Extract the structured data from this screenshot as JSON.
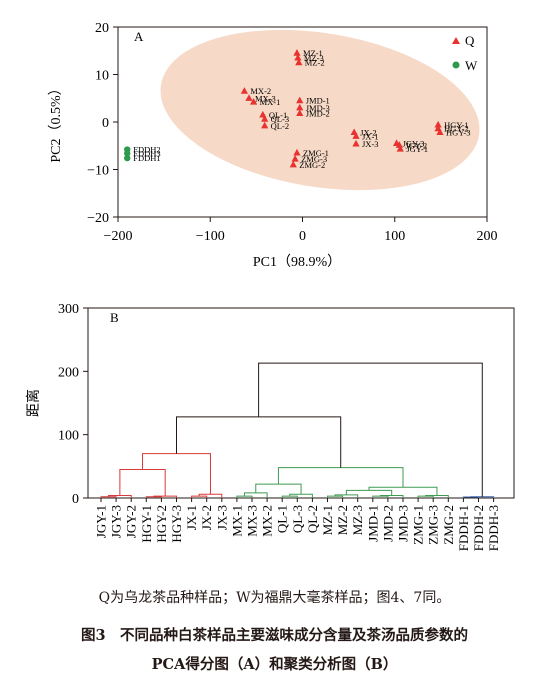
{
  "chart_data": [
    {
      "type": "scatter",
      "panel_label": "A",
      "xlabel": "PC1（98.9%）",
      "ylabel": "PC2（0.5%）",
      "xlim": [
        -200,
        200
      ],
      "ylim": [
        -20,
        20
      ],
      "x_ticks": [
        -200,
        -100,
        0,
        100,
        200
      ],
      "x_tick_labels": [
        "−200",
        "−100",
        "0",
        "100",
        "200"
      ],
      "y_ticks": [
        -20,
        -10,
        0,
        10,
        20
      ],
      "y_tick_labels": [
        "−20",
        "−10",
        "0",
        "10",
        "20"
      ],
      "legend_position": "top-right",
      "colors": {
        "Q": "#e8322f",
        "W": "#2e9a4e",
        "ellipse": "#f6d9c6"
      },
      "series": [
        {
          "name": "Q",
          "marker": "triangle",
          "points": [
            {
              "label": "MZ-1",
              "x": -6,
              "y": 14.5
            },
            {
              "label": "MZ-3",
              "x": -5,
              "y": 13.5
            },
            {
              "label": "MZ-2",
              "x": -4,
              "y": 12.5
            },
            {
              "label": "MX-2",
              "x": -63,
              "y": 6.5
            },
            {
              "label": "MX-3",
              "x": -58,
              "y": 5
            },
            {
              "label": "MX-1",
              "x": -53,
              "y": 4.2
            },
            {
              "label": "JMD-1",
              "x": -3,
              "y": 4.5
            },
            {
              "label": "JMD-3",
              "x": -3,
              "y": 3
            },
            {
              "label": "JMD-2",
              "x": -3,
              "y": 1.8
            },
            {
              "label": "QL-1",
              "x": -43,
              "y": 1.5
            },
            {
              "label": "QL-3",
              "x": -41,
              "y": 0.6
            },
            {
              "label": "QL-2",
              "x": -41,
              "y": -0.8
            },
            {
              "label": "JX-2",
              "x": 56,
              "y": -2.2
            },
            {
              "label": "JX-1",
              "x": 58,
              "y": -3
            },
            {
              "label": "JX-3",
              "x": 58,
              "y": -4.6
            },
            {
              "label": "JGY-3",
              "x": 102,
              "y": -4.5
            },
            {
              "label": "JGY-2",
              "x": 105,
              "y": -4.9
            },
            {
              "label": "JGY-1",
              "x": 106,
              "y": -5.7
            },
            {
              "label": "HGY-1",
              "x": 147,
              "y": -0.6
            },
            {
              "label": "HGY-2",
              "x": 147,
              "y": -1.4
            },
            {
              "label": "HGY-3",
              "x": 149,
              "y": -2.2
            },
            {
              "label": "ZMG-1",
              "x": -6,
              "y": -6.5
            },
            {
              "label": "ZMG-3",
              "x": -8,
              "y": -7.8
            },
            {
              "label": "ZMG-2",
              "x": -10,
              "y": -9
            }
          ]
        },
        {
          "name": "W",
          "marker": "circle",
          "points": [
            {
              "label": "FDDH2",
              "x": -190,
              "y": -5.8
            },
            {
              "label": "FDDH3",
              "x": -190,
              "y": -6.6
            },
            {
              "label": "FDDH1",
              "x": -190,
              "y": -7.6
            }
          ]
        }
      ]
    },
    {
      "type": "dendrogram",
      "panel_label": "B",
      "ylabel": "距离",
      "ylim": [
        0,
        300
      ],
      "y_ticks": [
        0,
        100,
        200,
        300
      ],
      "leaves": [
        "JGY-1",
        "JGY-3",
        "JGY-2",
        "HGY-1",
        "HGY-2",
        "HGY-3",
        "JX-1",
        "JX-2",
        "JX-3",
        "MX-1",
        "MX-3",
        "MX-2",
        "QL-1",
        "QL-3",
        "QL-2",
        "MZ-1",
        "MZ-2",
        "MZ-3",
        "JMD-1",
        "JMD-2",
        "JMD-3",
        "ZMG-1",
        "ZMG-3",
        "ZMG-2",
        "FDDH-1",
        "FDDH-2",
        "FDDH-3"
      ],
      "colors": {
        "red": "#d9393b",
        "green": "#3d9b52",
        "blue": "#3a64ad",
        "black": "#231815"
      },
      "merges": [
        {
          "a": "JGY-1",
          "b": "JGY-3",
          "h": 2,
          "color": "red"
        },
        {
          "a": "JGY-1|JGY-3",
          "b": "JGY-2",
          "h": 4,
          "color": "red"
        },
        {
          "a": "HGY-1",
          "b": "HGY-2",
          "h": 2,
          "color": "red"
        },
        {
          "a": "HGY-1|HGY-2",
          "b": "HGY-3",
          "h": 3,
          "color": "red"
        },
        {
          "a": "JGY",
          "b": "HGY",
          "h": 45,
          "color": "red"
        },
        {
          "a": "JX-1",
          "b": "JX-2",
          "h": 3,
          "color": "red"
        },
        {
          "a": "JX-1|JX-2",
          "b": "JX-3",
          "h": 6,
          "color": "red"
        },
        {
          "a": "JGY+HGY",
          "b": "JX",
          "h": 70,
          "color": "red"
        },
        {
          "a": "MX-1",
          "b": "MX-3",
          "h": 3,
          "color": "green"
        },
        {
          "a": "MX-1|MX-3",
          "b": "MX-2",
          "h": 8,
          "color": "green"
        },
        {
          "a": "QL-1",
          "b": "QL-3",
          "h": 3,
          "color": "green"
        },
        {
          "a": "QL-1|QL-3",
          "b": "QL-2",
          "h": 6,
          "color": "green"
        },
        {
          "a": "MX",
          "b": "QL",
          "h": 22,
          "color": "green"
        },
        {
          "a": "MZ-1",
          "b": "MZ-2",
          "h": 3,
          "color": "green"
        },
        {
          "a": "MZ-1|MZ-2",
          "b": "MZ-3",
          "h": 5,
          "color": "green"
        },
        {
          "a": "JMD-1",
          "b": "JMD-2",
          "h": 3,
          "color": "green"
        },
        {
          "a": "JMD-1|JMD-2",
          "b": "JMD-3",
          "h": 4,
          "color": "green"
        },
        {
          "a": "MZ",
          "b": "JMD",
          "h": 12,
          "color": "green"
        },
        {
          "a": "ZMG-1",
          "b": "ZMG-3",
          "h": 3,
          "color": "green"
        },
        {
          "a": "ZMG-1|ZMG-3",
          "b": "ZMG-2",
          "h": 4,
          "color": "green"
        },
        {
          "a": "MZ+JMD",
          "b": "ZMG",
          "h": 17,
          "color": "green"
        },
        {
          "a": "MX+QL",
          "b": "MZ+JMD+ZMG",
          "h": 48,
          "color": "green"
        },
        {
          "a": "FDDH-1",
          "b": "FDDH-2",
          "h": 1.5,
          "color": "blue"
        },
        {
          "a": "FDDH-1|FDDH-2",
          "b": "FDDH-3",
          "h": 2,
          "color": "blue"
        },
        {
          "a": "red-cluster",
          "b": "green-cluster",
          "h": 128,
          "color": "black"
        },
        {
          "a": "Q-cluster",
          "b": "FDDH",
          "h": 213,
          "color": "black"
        }
      ]
    }
  ],
  "caption": {
    "note": "Q为乌龙茶品种样品；W为福鼎大毫茶样品；图4、7同。",
    "title_line1": "图3　不同品种白茶样品主要滋味成分含量及茶汤品质参数的",
    "title_line2": "PCA得分图（A）和聚类分析图（B）"
  }
}
